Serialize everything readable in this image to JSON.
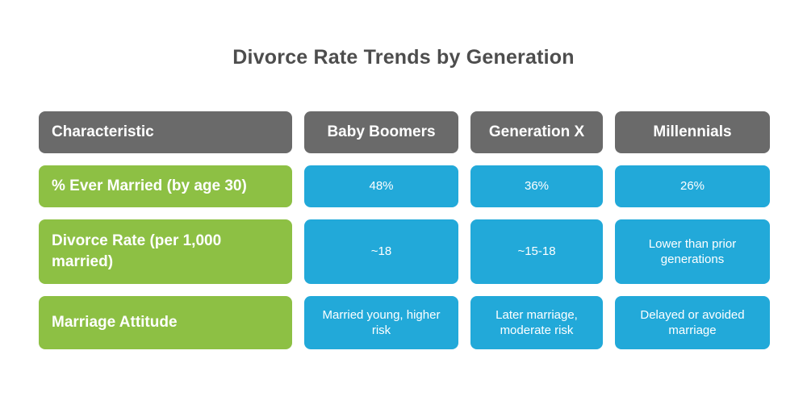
{
  "title": "Divorce Rate Trends by Generation",
  "colors": {
    "title_color": "#4d4d4d",
    "header_bg": "#6a6a6a",
    "label_bg": "#8dc044",
    "value_bg": "#22a9d9",
    "text_on_fill": "#ffffff",
    "background": "#ffffff"
  },
  "chart_data": {
    "type": "table",
    "title": "Divorce Rate Trends by Generation",
    "columns": [
      "Characteristic",
      "Baby Boomers",
      "Generation X",
      "Millennials"
    ],
    "rows": [
      {
        "label": "% Ever Married (by age 30)",
        "values": [
          "48%",
          "36%",
          "26%"
        ]
      },
      {
        "label": "Divorce Rate (per 1,000 married)",
        "values": [
          "~18",
          "~15-18",
          "Lower than prior generations"
        ]
      },
      {
        "label": "Marriage Attitude",
        "values": [
          "Married young, higher risk",
          "Later marriage, moderate risk",
          "Delayed or avoided marriage"
        ]
      }
    ]
  }
}
